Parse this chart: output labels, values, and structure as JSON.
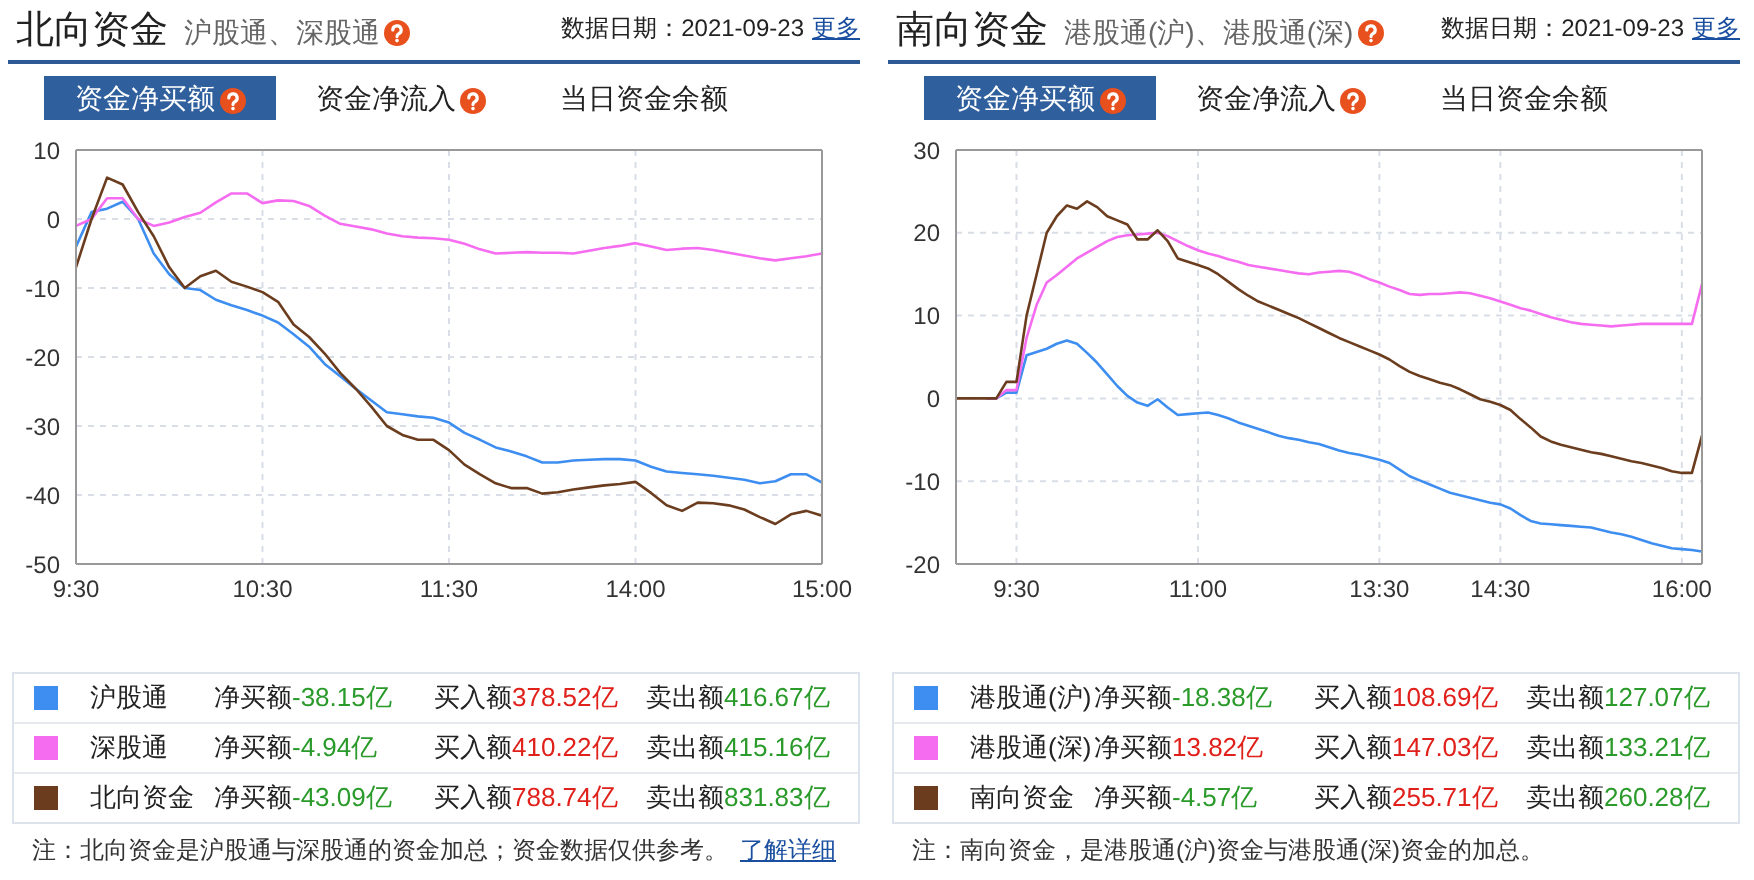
{
  "chart_data": [
    {
      "type": "line",
      "title": "北向资金",
      "subtitle": "沪股通、深股通",
      "categories": [
        "9:30",
        null,
        null,
        null,
        null,
        null,
        null,
        null,
        null,
        null,
        null,
        null,
        "10:30",
        null,
        null,
        null,
        null,
        null,
        null,
        null,
        null,
        null,
        null,
        null,
        "11:30",
        null,
        null,
        null,
        null,
        null,
        null,
        null,
        null,
        null,
        null,
        null,
        "14:00",
        null,
        null,
        null,
        null,
        null,
        null,
        null,
        null,
        null,
        null,
        null,
        "15:00"
      ],
      "ylim": [
        -50,
        10
      ],
      "yticks": [
        10,
        0,
        -10,
        -20,
        -30,
        -40,
        -50
      ],
      "grid": true,
      "legend": "bottom",
      "marker": "none",
      "line_style": "solid",
      "annotations": [
        "数据日期：2021-09-23",
        "更多",
        "资金净买额",
        "资金净流入",
        "当日资金余额",
        "净买额-38.15亿",
        "买入额378.52亿",
        "卖出额416.67亿",
        "净买额-4.94亿",
        "买入额410.22亿",
        "卖出额415.16亿",
        "净买额-43.09亿",
        "买入额788.74亿",
        "卖出额831.83亿",
        "注：北向资金是沪股通与深股通的资金加总；资金数据仅供参考。",
        "了解详细"
      ],
      "series": [
        {
          "name": "沪股通",
          "color": "#3d8ef0",
          "values": [
            -4,
            1,
            1.5,
            2.5,
            0,
            -5,
            -8,
            -10,
            -10.3,
            -11.7,
            -12.5,
            -13.2,
            -14,
            -15,
            -16.7,
            -18.5,
            -21,
            -22.8,
            -24.6,
            -26.3,
            -28,
            -28.3,
            -28.6,
            -28.8,
            -29.5,
            -31,
            -32,
            -33.1,
            -33.7,
            -34.4,
            -35.3,
            -35.3,
            -35,
            -34.9,
            -34.8,
            -34.8,
            -35,
            -35.9,
            -36.6,
            -36.8,
            -37,
            -37.2,
            -37.5,
            -37.8,
            -38.3,
            -38,
            -37,
            -37,
            -38.2
          ]
        },
        {
          "name": "深股通",
          "color": "#f56cf0",
          "values": [
            -1,
            0,
            3,
            3,
            0,
            -1,
            -0.5,
            0.3,
            0.9,
            2.4,
            3.7,
            3.7,
            2.3,
            2.7,
            2.6,
            1.9,
            0.5,
            -0.7,
            -1.1,
            -1.5,
            -2.1,
            -2.5,
            -2.7,
            -2.8,
            -3,
            -3.6,
            -4.4,
            -5,
            -4.9,
            -4.8,
            -4.9,
            -4.9,
            -5,
            -4.6,
            -4.2,
            -3.9,
            -3.5,
            -4,
            -4.5,
            -4.3,
            -4.2,
            -4.5,
            -4.9,
            -5.3,
            -5.7,
            -6,
            -5.7,
            -5.4,
            -5
          ]
        },
        {
          "name": "北向资金",
          "color": "#6b3d1e",
          "values": [
            -7,
            0,
            6,
            5,
            1,
            -2.5,
            -7,
            -10,
            -8.3,
            -7.5,
            -9.1,
            -9.8,
            -10.6,
            -12,
            -15.3,
            -17.1,
            -19.5,
            -22.3,
            -24.6,
            -27.2,
            -30,
            -31.3,
            -32,
            -32,
            -33.5,
            -35.6,
            -37,
            -38.3,
            -39,
            -39,
            -39.8,
            -39.6,
            -39.2,
            -38.9,
            -38.6,
            -38.4,
            -38.1,
            -39.7,
            -41.5,
            -42.3,
            -41.1,
            -41.2,
            -41.5,
            -42.1,
            -43.2,
            -44.2,
            -42.8,
            -42.3,
            -43
          ]
        }
      ]
    },
    {
      "type": "line",
      "title": "南向资金",
      "subtitle": "港股通(沪)、港股通(深)",
      "categories": [
        null,
        null,
        null,
        null,
        null,
        null,
        "9:30",
        null,
        null,
        null,
        null,
        null,
        null,
        null,
        null,
        null,
        null,
        null,
        null,
        null,
        null,
        null,
        null,
        null,
        "11:00",
        null,
        null,
        null,
        null,
        null,
        null,
        null,
        null,
        null,
        null,
        null,
        null,
        null,
        null,
        null,
        null,
        null,
        "13:30",
        null,
        null,
        null,
        null,
        null,
        null,
        null,
        null,
        null,
        null,
        null,
        "14:30",
        null,
        null,
        null,
        null,
        null,
        null,
        null,
        null,
        null,
        null,
        null,
        null,
        null,
        null,
        null,
        null,
        null,
        "16:00",
        null,
        null
      ],
      "ylim": [
        -20,
        30
      ],
      "yticks": [
        30,
        20,
        10,
        0,
        -10,
        -20
      ],
      "grid": true,
      "legend": "bottom",
      "marker": "none",
      "line_style": "solid",
      "annotations": [
        "数据日期：2021-09-23",
        "更多",
        "资金净买额",
        "资金净流入",
        "当日资金余额",
        "净买额-18.38亿",
        "买入额108.69亿",
        "卖出额127.07亿",
        "净买额13.82亿",
        "买入额147.03亿",
        "卖出额133.21亿",
        "净买额-4.57亿",
        "买入额255.71亿",
        "卖出额260.28亿",
        "注：南向资金，是港股通(沪)资金与港股通(深)资金的加总。"
      ],
      "series": [
        {
          "name": "港股通(沪)",
          "color": "#3d8ef0",
          "values": [
            null,
            null,
            null,
            0,
            0,
            0.7,
            0.7,
            5.2,
            5.6,
            6,
            6.6,
            7,
            6.6,
            5.5,
            4.3,
            2.9,
            1.5,
            0.3,
            -0.5,
            -0.9,
            -0.1,
            -1.1,
            -2,
            -1.9,
            -1.8,
            -1.7,
            -2,
            -2.4,
            -2.9,
            -3.3,
            -3.7,
            -4.1,
            -4.5,
            -4.8,
            -5,
            -5.3,
            -5.5,
            -5.9,
            -6.3,
            -6.6,
            -6.8,
            -7.1,
            -7.4,
            -7.8,
            -8.6,
            -9.4,
            -9.9,
            -10.4,
            -10.9,
            -11.4,
            -11.7,
            -12,
            -12.3,
            -12.6,
            -12.8,
            -13.3,
            -14.1,
            -14.8,
            -15.1,
            -15.2,
            -15.3,
            -15.4,
            -15.5,
            -15.6,
            -15.9,
            -16.2,
            -16.4,
            -16.7,
            -17.1,
            -17.5,
            -17.8,
            -18.1,
            -18.2,
            -18.3,
            -18.5
          ]
        },
        {
          "name": "港股通(深)",
          "color": "#f56cf0",
          "values": [
            null,
            null,
            null,
            0,
            0,
            1,
            1,
            7.3,
            11.3,
            14,
            14.9,
            15.9,
            16.9,
            17.6,
            18.3,
            19,
            19.5,
            19.7,
            19.8,
            19.9,
            20,
            19.6,
            19,
            18.4,
            17.9,
            17.5,
            17.2,
            16.8,
            16.5,
            16.1,
            15.9,
            15.7,
            15.5,
            15.3,
            15.1,
            15,
            15.2,
            15.3,
            15.4,
            15.3,
            14.9,
            14.4,
            14,
            13.5,
            13.1,
            12.6,
            12.5,
            12.6,
            12.6,
            12.7,
            12.8,
            12.7,
            12.4,
            12.1,
            11.7,
            11.3,
            10.9,
            10.6,
            10.2,
            9.8,
            9.5,
            9.2,
            9,
            8.9,
            8.8,
            8.7,
            8.8,
            8.9,
            9,
            9,
            9,
            9,
            9,
            9,
            13.8
          ]
        },
        {
          "name": "南向资金",
          "color": "#6b3d1e",
          "values": [
            0,
            0,
            0,
            0,
            0,
            2,
            2,
            10,
            15,
            20,
            22,
            23.3,
            22.9,
            23.8,
            23.1,
            22,
            21.5,
            21,
            19.2,
            19.2,
            20.3,
            19,
            16.9,
            16.5,
            16.1,
            15.7,
            15,
            14.1,
            13.2,
            12.4,
            11.7,
            11.2,
            10.7,
            10.2,
            9.7,
            9.1,
            8.5,
            7.9,
            7.3,
            6.8,
            6.3,
            5.8,
            5.3,
            4.7,
            3.9,
            3.2,
            2.7,
            2.3,
            1.9,
            1.6,
            1.1,
            0.5,
            -0.1,
            -0.4,
            -0.8,
            -1.4,
            -2.5,
            -3.5,
            -4.6,
            -5.2,
            -5.6,
            -5.9,
            -6.2,
            -6.5,
            -6.7,
            -7,
            -7.3,
            -7.6,
            -7.8,
            -8.1,
            -8.4,
            -8.8,
            -9,
            -9,
            -4.5
          ]
        }
      ]
    }
  ]
}
